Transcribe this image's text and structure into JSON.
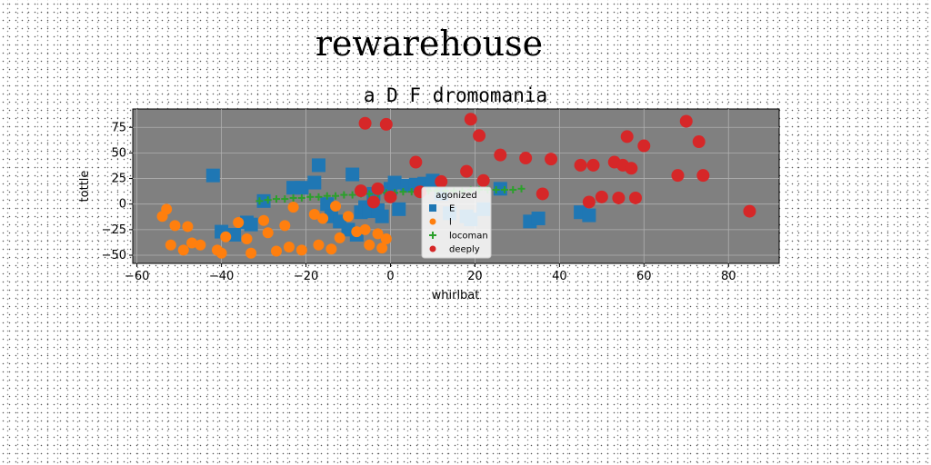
{
  "suptitle": "rewarehouse",
  "chart_data": {
    "type": "scatter",
    "title": "a D F dromomania",
    "xlabel": "whirlbat",
    "ylabel": "tottle",
    "xlim": [
      -61,
      92
    ],
    "ylim": [
      -58,
      93
    ],
    "xticks": [
      -60,
      -40,
      -20,
      0,
      20,
      40,
      60,
      80
    ],
    "yticks": [
      -50,
      -25,
      0,
      25,
      50,
      75
    ],
    "grid": true,
    "plot_background": "#808080",
    "legend": {
      "title": "agonized",
      "placement": "lower-center"
    },
    "series": [
      {
        "name": "E",
        "marker": "square",
        "color": "#1f77b4",
        "points": [
          [
            -42,
            28
          ],
          [
            -37,
            -30
          ],
          [
            -40,
            -27
          ],
          [
            -34,
            -18
          ],
          [
            -33,
            -20
          ],
          [
            -30,
            3
          ],
          [
            -23,
            16
          ],
          [
            -21,
            16
          ],
          [
            -18,
            21
          ],
          [
            -17,
            38
          ],
          [
            -15,
            0
          ],
          [
            -14,
            -12
          ],
          [
            -12,
            -17
          ],
          [
            -10,
            -25
          ],
          [
            -9,
            29
          ],
          [
            -8,
            -30
          ],
          [
            -7,
            -8
          ],
          [
            -6,
            -3
          ],
          [
            -5,
            -7
          ],
          [
            -4,
            10
          ],
          [
            -3,
            -6
          ],
          [
            -2,
            -12
          ],
          [
            0,
            15
          ],
          [
            1,
            21
          ],
          [
            2,
            -5
          ],
          [
            4,
            18
          ],
          [
            6,
            19
          ],
          [
            8,
            20
          ],
          [
            10,
            23
          ],
          [
            12,
            10
          ],
          [
            14,
            -9
          ],
          [
            18,
            -12
          ],
          [
            19,
            -15
          ],
          [
            22,
            -5
          ],
          [
            26,
            15
          ],
          [
            33,
            -17
          ],
          [
            35,
            -14
          ],
          [
            45,
            -8
          ],
          [
            47,
            -11
          ]
        ]
      },
      {
        "name": "l",
        "marker": "circle",
        "color": "#ff7f0e",
        "points": [
          [
            -54,
            -12
          ],
          [
            -53,
            -5
          ],
          [
            -52,
            -40
          ],
          [
            -51,
            -21
          ],
          [
            -49,
            -45
          ],
          [
            -48,
            -22
          ],
          [
            -47,
            -38
          ],
          [
            -45,
            -40
          ],
          [
            -41,
            -45
          ],
          [
            -40,
            -48
          ],
          [
            -39,
            -32
          ],
          [
            -36,
            -18
          ],
          [
            -34,
            -34
          ],
          [
            -33,
            -48
          ],
          [
            -30,
            -16
          ],
          [
            -29,
            -28
          ],
          [
            -27,
            -46
          ],
          [
            -25,
            -21
          ],
          [
            -24,
            -42
          ],
          [
            -23,
            -3
          ],
          [
            -21,
            -45
          ],
          [
            -18,
            -10
          ],
          [
            -17,
            -40
          ],
          [
            -16,
            -14
          ],
          [
            -14,
            -44
          ],
          [
            -13,
            -2
          ],
          [
            -12,
            -33
          ],
          [
            -10,
            -12
          ],
          [
            -8,
            -27
          ],
          [
            -6,
            -25
          ],
          [
            -5,
            -40
          ],
          [
            -3,
            -29
          ],
          [
            -2,
            -43
          ],
          [
            -1,
            -34
          ]
        ]
      },
      {
        "name": "locoman",
        "marker": "plus",
        "color": "#2ca02c",
        "points": [
          [
            -31,
            3
          ],
          [
            -29,
            4
          ],
          [
            -27,
            5
          ],
          [
            -25,
            5
          ],
          [
            -23,
            6
          ],
          [
            -21,
            6
          ],
          [
            -19,
            7
          ],
          [
            -17,
            7
          ],
          [
            -15,
            8
          ],
          [
            -13,
            8
          ],
          [
            -11,
            9
          ],
          [
            -9,
            9
          ],
          [
            -7,
            10
          ],
          [
            -5,
            10
          ],
          [
            -3,
            10
          ],
          [
            -1,
            11
          ],
          [
            1,
            11
          ],
          [
            3,
            12
          ],
          [
            5,
            12
          ],
          [
            7,
            12
          ],
          [
            9,
            13
          ],
          [
            11,
            13
          ],
          [
            13,
            13
          ],
          [
            15,
            13
          ],
          [
            17,
            13
          ],
          [
            19,
            14
          ],
          [
            21,
            14
          ],
          [
            23,
            14
          ],
          [
            25,
            14
          ],
          [
            27,
            14
          ],
          [
            29,
            14
          ],
          [
            31,
            15
          ]
        ]
      },
      {
        "name": "deeply",
        "marker": "circle",
        "color": "#d62728",
        "points": [
          [
            -7,
            13
          ],
          [
            -6,
            79
          ],
          [
            -4,
            2
          ],
          [
            -3,
            15
          ],
          [
            -1,
            78
          ],
          [
            0,
            7
          ],
          [
            6,
            41
          ],
          [
            7,
            12
          ],
          [
            12,
            22
          ],
          [
            18,
            32
          ],
          [
            19,
            83
          ],
          [
            21,
            67
          ],
          [
            22,
            23
          ],
          [
            26,
            48
          ],
          [
            32,
            45
          ],
          [
            36,
            10
          ],
          [
            38,
            44
          ],
          [
            45,
            38
          ],
          [
            47,
            2
          ],
          [
            48,
            38
          ],
          [
            50,
            7
          ],
          [
            53,
            41
          ],
          [
            54,
            6
          ],
          [
            55,
            38
          ],
          [
            56,
            66
          ],
          [
            57,
            35
          ],
          [
            58,
            6
          ],
          [
            60,
            57
          ],
          [
            68,
            28
          ],
          [
            70,
            81
          ],
          [
            74,
            28
          ],
          [
            73,
            61
          ],
          [
            85,
            -7
          ]
        ]
      }
    ]
  }
}
